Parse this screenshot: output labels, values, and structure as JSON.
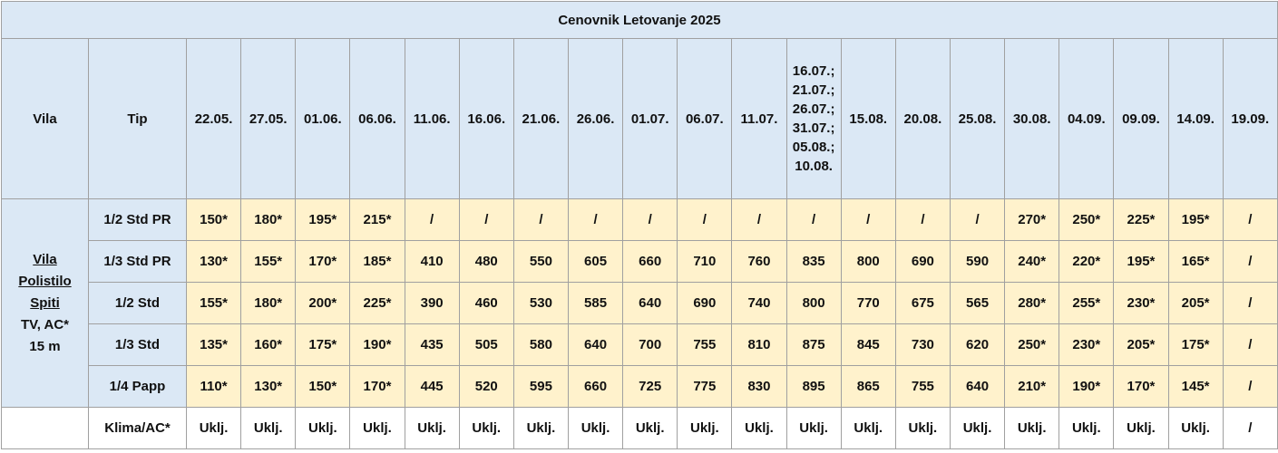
{
  "title": "Cenovnik Letovanje 2025",
  "header": {
    "vila": "Vila",
    "tip": "Tip",
    "dates": [
      "22.05.",
      "27.05.",
      "01.06.",
      "06.06.",
      "11.06.",
      "16.06.",
      "21.06.",
      "26.06.",
      "01.07.",
      "06.07.",
      "11.07.",
      "16.07.; 21.07.; 26.07.; 31.07.; 05.08.; 10.08.",
      "15.08.",
      "20.08.",
      "25.08.",
      "30.08.",
      "04.09.",
      "09.09.",
      "14.09.",
      "19.09."
    ]
  },
  "vila": {
    "name_lines": [
      "Vila",
      "Polistilo",
      "Spiti"
    ],
    "details": [
      "TV, AC*",
      "15 m"
    ]
  },
  "rows": [
    {
      "tip": "1/2 Std PR",
      "prices": [
        "150*",
        "180*",
        "195*",
        "215*",
        "/",
        "/",
        "/",
        "/",
        "/",
        "/",
        "/",
        "/",
        "/",
        "/",
        "/",
        "270*",
        "250*",
        "225*",
        "195*",
        "/"
      ]
    },
    {
      "tip": "1/3 Std PR",
      "prices": [
        "130*",
        "155*",
        "170*",
        "185*",
        "410",
        "480",
        "550",
        "605",
        "660",
        "710",
        "760",
        "835",
        "800",
        "690",
        "590",
        "240*",
        "220*",
        "195*",
        "165*",
        "/"
      ]
    },
    {
      "tip": "1/2 Std",
      "prices": [
        "155*",
        "180*",
        "200*",
        "225*",
        "390",
        "460",
        "530",
        "585",
        "640",
        "690",
        "740",
        "800",
        "770",
        "675",
        "565",
        "280*",
        "255*",
        "230*",
        "205*",
        "/"
      ]
    },
    {
      "tip": "1/3 Std",
      "prices": [
        "135*",
        "160*",
        "175*",
        "190*",
        "435",
        "505",
        "580",
        "640",
        "700",
        "755",
        "810",
        "875",
        "845",
        "730",
        "620",
        "250*",
        "230*",
        "205*",
        "175*",
        "/"
      ]
    },
    {
      "tip": "1/4 Papp",
      "prices": [
        "110*",
        "130*",
        "150*",
        "170*",
        "445",
        "520",
        "595",
        "660",
        "725",
        "775",
        "830",
        "895",
        "865",
        "755",
        "640",
        "210*",
        "190*",
        "170*",
        "145*",
        "/"
      ]
    },
    {
      "tip": "Klima/AC*",
      "prices": [
        "Uklj.",
        "Uklj.",
        "Uklj.",
        "Uklj.",
        "Uklj.",
        "Uklj.",
        "Uklj.",
        "Uklj.",
        "Uklj.",
        "Uklj.",
        "Uklj.",
        "Uklj.",
        "Uklj.",
        "Uklj.",
        "Uklj.",
        "Uklj.",
        "Uklj.",
        "Uklj.",
        "Uklj.",
        "/"
      ]
    }
  ]
}
